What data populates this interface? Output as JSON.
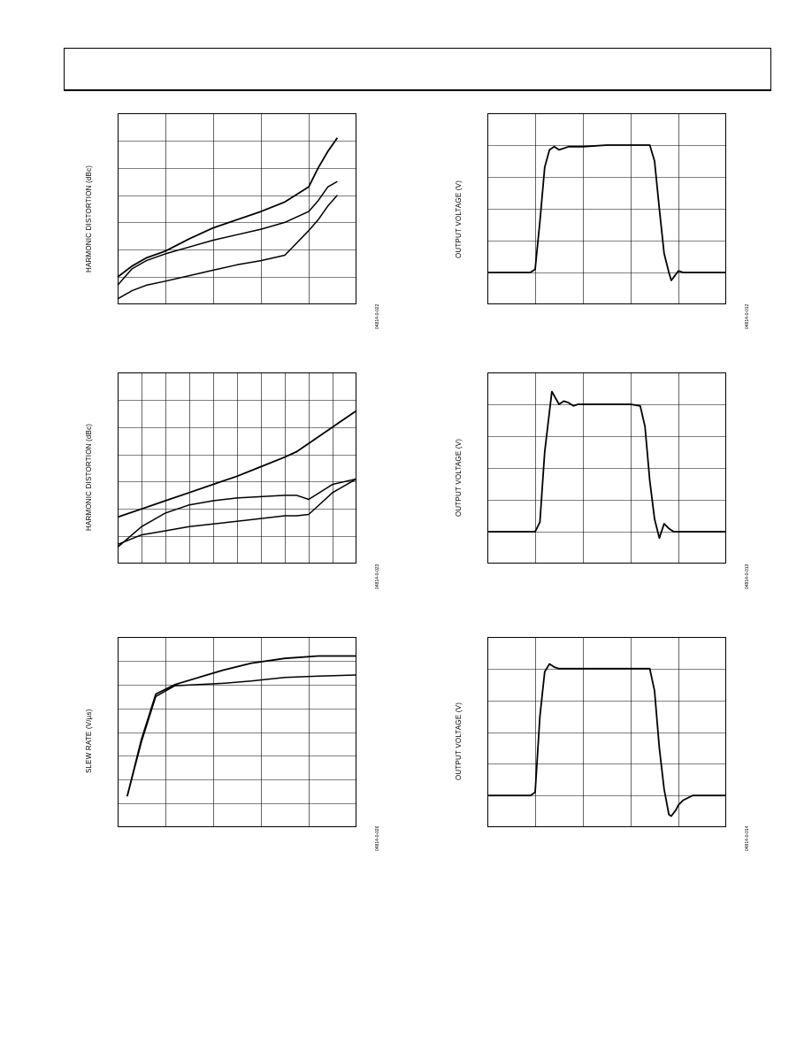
{
  "page": {
    "figures": [
      {
        "id": "fig-hd-1",
        "ylabel": "HARMONIC DISTORTION (dBc)",
        "fig_code": "04814-0-022"
      },
      {
        "id": "fig-step-1",
        "ylabel": "OUTPUT VOLTAGE (V)",
        "fig_code": "04814-0-012"
      },
      {
        "id": "fig-hd-2",
        "ylabel": "HARMONIC DISTORTION (dBc)",
        "fig_code": "04814-0-023"
      },
      {
        "id": "fig-step-2",
        "ylabel": "OUTPUT VOLTAGE (V)",
        "fig_code": "04814-0-013"
      },
      {
        "id": "fig-slew",
        "ylabel": "SLEW RATE (V/µs)",
        "fig_code": "04814-0-026"
      },
      {
        "id": "fig-step-3",
        "ylabel": "OUTPUT VOLTAGE (V)",
        "fig_code": "04814-0-014"
      }
    ]
  },
  "chart_data": [
    {
      "type": "line",
      "ylabel": "HARMONIC DISTORTION (dBc)",
      "grid": true,
      "xlim": [
        0,
        5
      ],
      "ylim": [
        0,
        7
      ],
      "series": [
        {
          "x": [
            0,
            0.3,
            0.6,
            1,
            1.5,
            2,
            2.5,
            3,
            3.5,
            4,
            4.2,
            4.4,
            4.6
          ],
          "y": [
            1.0,
            1.4,
            1.7,
            1.95,
            2.4,
            2.8,
            3.1,
            3.4,
            3.75,
            4.3,
            5.0,
            5.6,
            6.1
          ]
        },
        {
          "x": [
            0,
            0.3,
            0.6,
            1,
            1.5,
            2,
            2.5,
            3,
            3.5,
            4,
            4.2,
            4.4,
            4.6
          ],
          "y": [
            0.7,
            1.3,
            1.6,
            1.85,
            2.1,
            2.35,
            2.55,
            2.75,
            3.0,
            3.4,
            3.8,
            4.3,
            4.5
          ]
        },
        {
          "x": [
            0,
            0.3,
            0.6,
            1,
            1.5,
            2,
            2.5,
            3,
            3.5,
            4,
            4.2,
            4.4,
            4.6
          ],
          "y": [
            0.2,
            0.5,
            0.7,
            0.85,
            1.05,
            1.25,
            1.45,
            1.6,
            1.8,
            2.7,
            3.1,
            3.6,
            4.0
          ]
        }
      ]
    },
    {
      "type": "line",
      "ylabel": "OUTPUT VOLTAGE (V)",
      "grid": true,
      "xlim": [
        0,
        5
      ],
      "ylim": [
        0,
        6
      ],
      "series": [
        {
          "x": [
            0,
            0.9,
            1,
            1.1,
            1.2,
            1.3,
            1.4,
            1.5,
            1.7,
            2,
            2.5,
            3,
            3.3,
            3.4,
            3.5,
            3.6,
            3.7,
            3.8,
            3.85,
            3.9,
            4,
            4.1,
            4.3,
            5
          ],
          "y": [
            1.0,
            1.0,
            1.1,
            2.6,
            4.3,
            4.85,
            4.95,
            4.85,
            4.95,
            4.95,
            5.0,
            5.0,
            5.0,
            5.0,
            4.5,
            3.0,
            1.6,
            1.0,
            0.75,
            0.85,
            1.05,
            1.0,
            1.0,
            1.0
          ]
        }
      ]
    },
    {
      "type": "line",
      "ylabel": "HARMONIC DISTORTION (dBc)",
      "grid": true,
      "xlim": [
        0,
        10
      ],
      "ylim": [
        0,
        7
      ],
      "series": [
        {
          "x": [
            0,
            1,
            2,
            3,
            4,
            5,
            6,
            7,
            7.5,
            8,
            9,
            10
          ],
          "y": [
            1.7,
            2.0,
            2.3,
            2.6,
            2.9,
            3.2,
            3.55,
            3.9,
            4.1,
            4.4,
            5.0,
            5.6
          ]
        },
        {
          "x": [
            0,
            1,
            2,
            3,
            4,
            5,
            6,
            7,
            7.5,
            8,
            9,
            10
          ],
          "y": [
            0.6,
            1.35,
            1.85,
            2.15,
            2.3,
            2.4,
            2.45,
            2.5,
            2.5,
            2.35,
            2.9,
            3.1
          ]
        },
        {
          "x": [
            0,
            1,
            2,
            3,
            4,
            5,
            6,
            7,
            7.5,
            8,
            9,
            10
          ],
          "y": [
            0.7,
            1.05,
            1.2,
            1.35,
            1.45,
            1.55,
            1.65,
            1.75,
            1.75,
            1.8,
            2.6,
            3.1
          ]
        }
      ]
    },
    {
      "type": "line",
      "ylabel": "OUTPUT VOLTAGE (V)",
      "grid": true,
      "xlim": [
        0,
        5
      ],
      "ylim": [
        0,
        6
      ],
      "series": [
        {
          "x": [
            0,
            1,
            1.1,
            1.2,
            1.35,
            1.5,
            1.6,
            1.7,
            1.8,
            1.9,
            2,
            2.5,
            3,
            3.2,
            3.3,
            3.4,
            3.5,
            3.6,
            3.7,
            3.8,
            3.9,
            4,
            4.1,
            4.3,
            5
          ],
          "y": [
            1.0,
            1.0,
            1.3,
            3.5,
            5.4,
            5.0,
            5.1,
            5.05,
            4.95,
            5.0,
            5.0,
            5.0,
            5.0,
            4.95,
            4.3,
            2.6,
            1.4,
            0.8,
            1.25,
            1.1,
            1.0,
            1.0,
            1.0,
            1.0,
            1.0
          ]
        }
      ]
    },
    {
      "type": "line",
      "ylabel": "SLEW RATE (V/µs)",
      "grid": true,
      "xlim": [
        0,
        5
      ],
      "ylim": [
        0,
        8
      ],
      "series": [
        {
          "x": [
            0.2,
            0.5,
            0.8,
            1.2,
            1.7,
            2.2,
            2.8,
            3.5,
            4.2,
            5
          ],
          "y": [
            1.3,
            3.7,
            5.6,
            6.0,
            6.3,
            6.6,
            6.9,
            7.1,
            7.2,
            7.2
          ]
        },
        {
          "x": [
            0.2,
            0.5,
            0.8,
            1.2,
            1.7,
            2.2,
            2.8,
            3.5,
            4.2,
            5
          ],
          "y": [
            1.3,
            3.6,
            5.5,
            5.95,
            6.0,
            6.05,
            6.15,
            6.3,
            6.35,
            6.4
          ]
        }
      ]
    },
    {
      "type": "line",
      "ylabel": "OUTPUT VOLTAGE (V)",
      "grid": true,
      "xlim": [
        0,
        5
      ],
      "ylim": [
        0,
        6
      ],
      "series": [
        {
          "x": [
            0,
            0.9,
            1,
            1.1,
            1.2,
            1.3,
            1.4,
            1.5,
            1.7,
            2,
            2.5,
            3,
            3.4,
            3.5,
            3.6,
            3.7,
            3.8,
            3.85,
            3.95,
            4,
            4.1,
            4.3,
            5
          ],
          "y": [
            1.0,
            1.0,
            1.1,
            3.5,
            4.9,
            5.15,
            5.05,
            5.0,
            5.0,
            5.0,
            5.0,
            5.0,
            5.0,
            4.3,
            2.5,
            1.2,
            0.4,
            0.35,
            0.55,
            0.7,
            0.85,
            1.0,
            1.0
          ]
        }
      ]
    }
  ]
}
